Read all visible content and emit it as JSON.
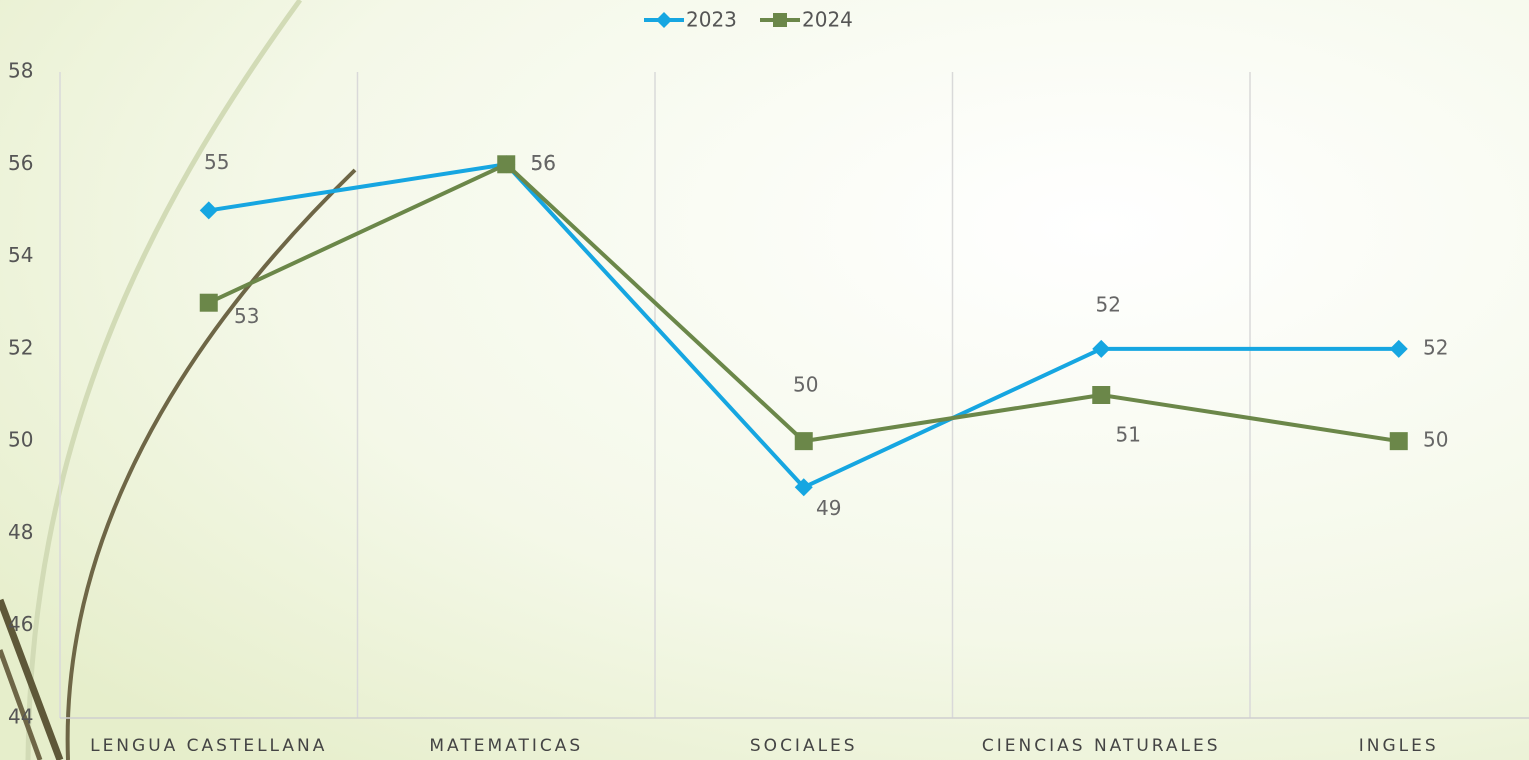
{
  "chart_data": {
    "type": "line",
    "categories": [
      "LENGUA CASTELLANA",
      "MATEMATICAS",
      "SOCIALES",
      "CIENCIAS NATURALES",
      "INGLES"
    ],
    "series": [
      {
        "name": "2023",
        "color": "#16a6e1",
        "marker": "diamond",
        "values": [
          55,
          56,
          49,
          52,
          52
        ]
      },
      {
        "name": "2024",
        "color": "#6b8749",
        "marker": "square",
        "values": [
          53,
          56,
          50,
          51,
          50
        ]
      }
    ],
    "ylim": [
      44,
      58
    ],
    "yticks": [
      44,
      46,
      48,
      50,
      52,
      54,
      56,
      58
    ],
    "grid": true,
    "legend": "top"
  }
}
